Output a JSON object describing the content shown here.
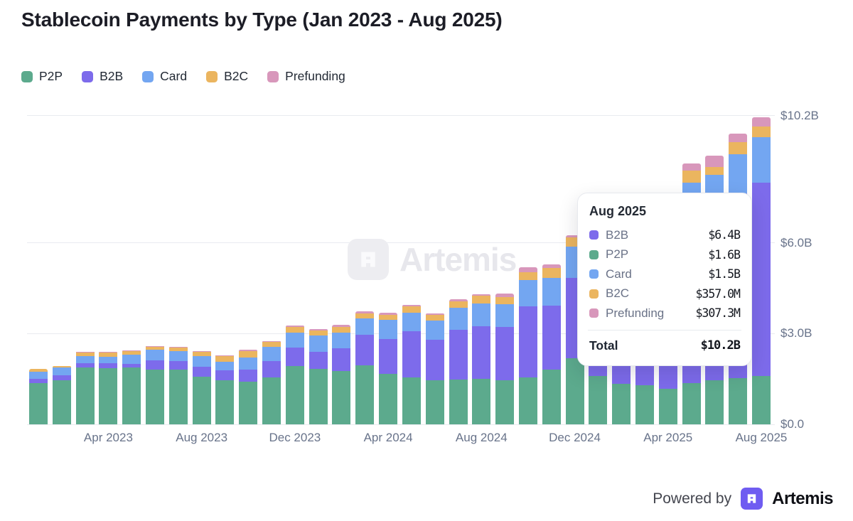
{
  "title": "Stablecoin Payments by Type (Jan 2023 - Aug 2025)",
  "colors": {
    "p2p": "#5caa8d",
    "b2b": "#7d6beb",
    "card": "#73a6f1",
    "b2c": "#ebb55f",
    "prefunding": "#d897bb",
    "gridline": "#e9ebf0",
    "axis_label": "#68738a",
    "brand_purple": "#6f5cf1"
  },
  "chart_data": {
    "type": "bar",
    "stacked": true,
    "title": "Stablecoin Payments by Type (Jan 2023 - Aug 2025)",
    "unit": "USD billions",
    "ylim": [
      0,
      10.2
    ],
    "legend_position": "top-left",
    "y_axis_side": "right",
    "grid": true,
    "categories": [
      "Jan 2023",
      "Feb 2023",
      "Mar 2023",
      "Apr 2023",
      "May 2023",
      "Jun 2023",
      "Jul 2023",
      "Aug 2023",
      "Sep 2023",
      "Oct 2023",
      "Nov 2023",
      "Dec 2023",
      "Jan 2024",
      "Feb 2024",
      "Mar 2024",
      "Apr 2024",
      "May 2024",
      "Jun 2024",
      "Jul 2024",
      "Aug 2024",
      "Sep 2024",
      "Oct 2024",
      "Nov 2024",
      "Dec 2024",
      "Jan 2025",
      "Feb 2025",
      "Mar 2025",
      "Apr 2025",
      "May 2025",
      "Jun 2025",
      "Jul 2025",
      "Aug 2025"
    ],
    "series": [
      {
        "name": "P2P",
        "color": "#5caa8d",
        "values": [
          1.37,
          1.45,
          1.89,
          1.86,
          1.88,
          1.82,
          1.8,
          1.58,
          1.46,
          1.41,
          1.56,
          1.93,
          1.84,
          1.76,
          1.95,
          1.66,
          1.56,
          1.45,
          1.49,
          1.5,
          1.45,
          1.56,
          1.8,
          2.19,
          1.6,
          1.33,
          1.29,
          1.17,
          1.37,
          1.45,
          1.52,
          1.6
        ]
      },
      {
        "name": "B2B",
        "color": "#7d6beb",
        "values": [
          0.14,
          0.16,
          0.14,
          0.15,
          0.12,
          0.29,
          0.29,
          0.33,
          0.33,
          0.41,
          0.54,
          0.61,
          0.56,
          0.75,
          1.01,
          1.17,
          1.53,
          1.35,
          1.63,
          1.74,
          1.77,
          2.34,
          2.12,
          2.66,
          3.5,
          3.9,
          4.2,
          4.5,
          5.78,
          5.74,
          6.12,
          6.4
        ]
      },
      {
        "name": "Card",
        "color": "#73a6f1",
        "values": [
          0.23,
          0.26,
          0.23,
          0.23,
          0.3,
          0.35,
          0.32,
          0.35,
          0.27,
          0.4,
          0.45,
          0.48,
          0.54,
          0.53,
          0.54,
          0.62,
          0.61,
          0.62,
          0.74,
          0.75,
          0.76,
          0.86,
          0.93,
          1.03,
          1.0,
          1.1,
          1.15,
          1.2,
          0.85,
          1.05,
          1.3,
          1.5
        ]
      },
      {
        "name": "B2C",
        "color": "#ebb55f",
        "values": [
          0.09,
          0.05,
          0.13,
          0.14,
          0.13,
          0.12,
          0.13,
          0.14,
          0.21,
          0.21,
          0.17,
          0.19,
          0.16,
          0.19,
          0.17,
          0.18,
          0.19,
          0.19,
          0.21,
          0.26,
          0.23,
          0.27,
          0.31,
          0.29,
          0.3,
          0.3,
          0.3,
          0.32,
          0.39,
          0.27,
          0.39,
          0.357
        ]
      },
      {
        "name": "Prefunding",
        "color": "#d897bb",
        "values": [
          0.0,
          0.0,
          0.01,
          0.01,
          0.01,
          0.01,
          0.01,
          0.01,
          0.01,
          0.04,
          0.04,
          0.06,
          0.06,
          0.06,
          0.06,
          0.05,
          0.06,
          0.05,
          0.06,
          0.05,
          0.12,
          0.16,
          0.12,
          0.08,
          0.1,
          0.12,
          0.13,
          0.15,
          0.24,
          0.37,
          0.29,
          0.307
        ]
      }
    ],
    "y_ticks": [
      {
        "value": 0,
        "label": "$0.0"
      },
      {
        "value": 3,
        "label": "$3.0B"
      },
      {
        "value": 6,
        "label": "$6.0B"
      },
      {
        "value": 10.2,
        "label": "$10.2B"
      }
    ],
    "x_ticks": [
      {
        "index": 3,
        "label": "Apr 2023"
      },
      {
        "index": 7,
        "label": "Aug 2023"
      },
      {
        "index": 11,
        "label": "Dec 2023"
      },
      {
        "index": 15,
        "label": "Apr 2024"
      },
      {
        "index": 19,
        "label": "Aug 2024"
      },
      {
        "index": 23,
        "label": "Dec 2024"
      },
      {
        "index": 27,
        "label": "Apr 2025"
      },
      {
        "index": 31,
        "label": "Aug 2025"
      }
    ]
  },
  "tooltip": {
    "title": "Aug 2025",
    "rows": [
      {
        "label": "B2B",
        "value": "$6.4B",
        "color": "#7d6beb"
      },
      {
        "label": "P2P",
        "value": "$1.6B",
        "color": "#5caa8d"
      },
      {
        "label": "Card",
        "value": "$1.5B",
        "color": "#73a6f1"
      },
      {
        "label": "B2C",
        "value": "$357.0M",
        "color": "#ebb55f"
      },
      {
        "label": "Prefunding",
        "value": "$307.3M",
        "color": "#d897bb"
      }
    ],
    "total_label": "Total",
    "total_value": "$10.2B"
  },
  "watermark": {
    "text": "Artemis"
  },
  "footer": {
    "powered_by": "Powered by",
    "brand": "Artemis"
  }
}
